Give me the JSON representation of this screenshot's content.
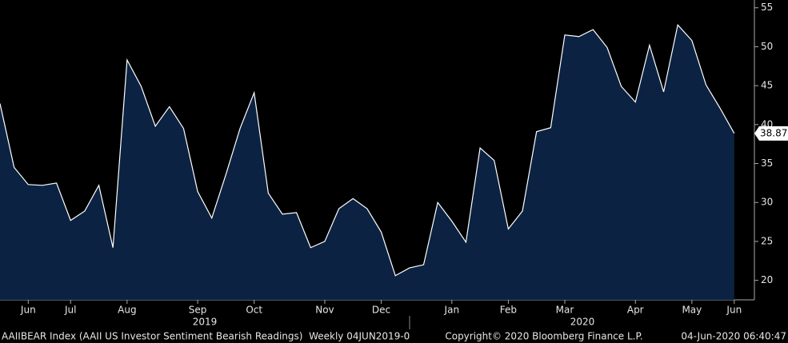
{
  "chart_data": {
    "type": "area",
    "categories": [
      null,
      null,
      "Jun",
      null,
      null,
      "Jul",
      null,
      null,
      null,
      "Aug",
      null,
      null,
      null,
      null,
      "Sep",
      null,
      null,
      null,
      "Oct",
      null,
      null,
      null,
      null,
      "Nov",
      null,
      null,
      null,
      "Dec",
      null,
      null,
      null,
      null,
      "Jan",
      null,
      null,
      null,
      "Feb",
      null,
      null,
      null,
      "Mar",
      null,
      null,
      null,
      null,
      "Apr",
      null,
      null,
      null,
      "May",
      null,
      null,
      "Jun"
    ],
    "values": [
      42.7,
      34.5,
      32.3,
      32.2,
      32.5,
      27.7,
      28.9,
      32.2,
      24.2,
      48.3,
      44.9,
      39.8,
      42.3,
      39.5,
      31.4,
      28.0,
      33.6,
      39.5,
      44.1,
      31.2,
      28.5,
      28.7,
      24.2,
      25.0,
      29.2,
      30.5,
      29.2,
      26.2,
      20.6,
      21.6,
      22.0,
      30.0,
      27.6,
      24.9,
      37.0,
      35.4,
      26.6,
      28.9,
      39.1,
      39.6,
      51.5,
      51.3,
      52.2,
      49.9,
      44.9,
      42.9,
      50.2,
      44.2,
      52.8,
      50.8,
      45.1,
      42.1,
      38.87
    ],
    "color": "#0c2242",
    "line_color": "#ffffff",
    "ylim": [
      17.5,
      56
    ],
    "yticks": [
      20,
      25,
      30,
      35,
      40,
      45,
      50,
      55
    ],
    "year_labels": [
      "2019",
      "2020"
    ],
    "footer": {
      "left": "AAIIBEAR Index (AAII US Investor Sentiment Bearish Readings)  Weekly 04JUN2019-0",
      "center": "Copyright© 2020 Bloomberg Finance L.P.",
      "right": "04-Jun-2020 06:40:47"
    }
  }
}
